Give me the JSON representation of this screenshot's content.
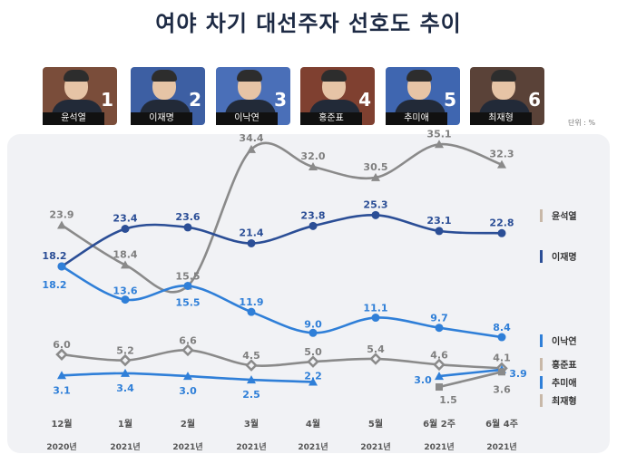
{
  "title": "여야 차기 대선주자 선호도 추이",
  "unit": "단위 : %",
  "candidates": [
    {
      "name": "윤석열",
      "number": "1",
      "bg": "#7a4d3a"
    },
    {
      "name": "이재명",
      "number": "2",
      "bg": "#3d5fa3"
    },
    {
      "name": "이낙연",
      "number": "3",
      "bg": "#4a6fb8"
    },
    {
      "name": "홍준표",
      "number": "4",
      "bg": "#7f4030"
    },
    {
      "name": "추미애",
      "number": "5",
      "bg": "#3f66b0"
    },
    {
      "name": "최재형",
      "number": "6",
      "bg": "#5a4238"
    }
  ],
  "chart_data": {
    "type": "line",
    "title": "여야 차기 대선주자 선호도 추이",
    "categories": [
      {
        "month": "12월",
        "year": "2020년"
      },
      {
        "month": "1월",
        "year": "2021년"
      },
      {
        "month": "2월",
        "year": "2021년"
      },
      {
        "month": "3월",
        "year": "2021년"
      },
      {
        "month": "4월",
        "year": "2021년"
      },
      {
        "month": "5월",
        "year": "2021년"
      },
      {
        "month": "6월 2주",
        "year": "2021년"
      },
      {
        "month": "6월 4주",
        "year": "2021년"
      }
    ],
    "series": [
      {
        "name": "윤석열",
        "color": "#8a8a8a",
        "marker": "triangle",
        "labelColor": "#7f7f7f",
        "values": [
          23.9,
          18.4,
          15.5,
          34.4,
          32.0,
          30.5,
          35.1,
          32.3
        ],
        "labels": [
          "23.9",
          "18.4",
          "15.5",
          "34.4",
          "32.0",
          "30.5",
          "35.1",
          "32.3"
        ]
      },
      {
        "name": "이재명",
        "color": "#2b4e96",
        "marker": "circle",
        "labelColor": "#2b4e96",
        "values": [
          18.2,
          23.4,
          23.6,
          21.4,
          23.8,
          25.3,
          23.1,
          22.8
        ],
        "labels": [
          "18.2",
          "23.4",
          "23.6",
          "21.4",
          "23.8",
          "25.3",
          "23.1",
          "22.8"
        ]
      },
      {
        "name": "이낙연",
        "color": "#2f7fd8",
        "marker": "circle",
        "labelColor": "#2f7fd8",
        "values": [
          18.2,
          13.6,
          15.5,
          11.9,
          9.0,
          11.1,
          9.7,
          8.4
        ],
        "labels": [
          "18.2",
          "13.6",
          "15.5",
          "11.9",
          "9.0",
          "11.1",
          "9.7",
          "8.4"
        ]
      },
      {
        "name": "홍준표",
        "color": "#8a8a8a",
        "marker": "diamond",
        "labelColor": "#7f7f7f",
        "values": [
          6.0,
          5.2,
          6.6,
          4.5,
          5.0,
          5.4,
          4.6,
          4.1
        ],
        "labels": [
          "6.0",
          "5.2",
          "6.6",
          "4.5",
          "5.0",
          "5.4",
          "4.6",
          "4.1"
        ]
      },
      {
        "name": "추미애",
        "color": "#2f7fd8",
        "marker": "triangle",
        "labelColor": "#2f7fd8",
        "values": [
          3.1,
          3.4,
          3.0,
          2.5,
          2.2,
          null,
          3.0,
          3.9
        ],
        "labels": [
          "3.1",
          "3.4",
          "3.0",
          "2.5",
          "2.2",
          "",
          "3.0",
          "3.9"
        ]
      },
      {
        "name": "최재형",
        "color": "#8a8a8a",
        "marker": "square",
        "labelColor": "#7f7f7f",
        "values": [
          null,
          null,
          null,
          null,
          null,
          null,
          1.5,
          3.6
        ],
        "labels": [
          "",
          "",
          "",
          "",
          "",
          "",
          "1.5",
          "3.6"
        ]
      }
    ],
    "legend": {
      "position": "right"
    },
    "grid": false
  }
}
